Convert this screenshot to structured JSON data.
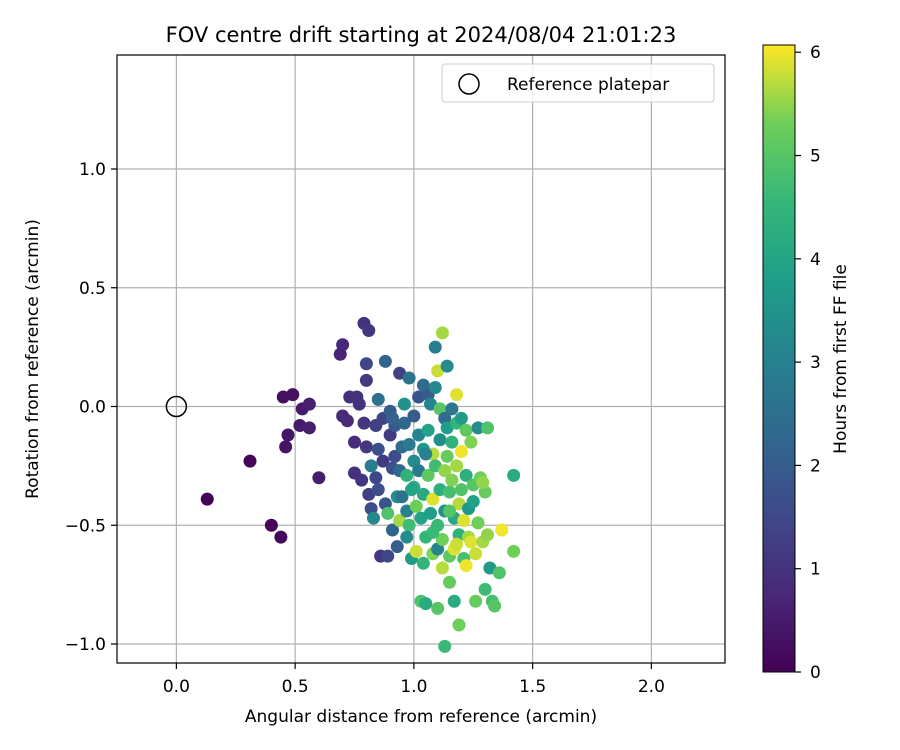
{
  "chart_data": {
    "type": "scatter",
    "title": "FOV centre drift starting at 2024/08/04 21:01:23",
    "xlabel": "Angular distance from reference (arcmin)",
    "ylabel": "Rotation from reference (arcmin)",
    "xlim": [
      -0.25,
      2.31
    ],
    "ylim": [
      -1.08,
      1.48
    ],
    "xticks": [
      0.0,
      0.5,
      1.0,
      1.5,
      2.0
    ],
    "xtick_labels": [
      "0.0",
      "0.5",
      "1.0",
      "1.5",
      "2.0"
    ],
    "yticks": [
      -1.0,
      -0.5,
      0.0,
      0.5,
      1.0
    ],
    "ytick_labels": [
      "−1.0",
      "−0.5",
      "0.0",
      "0.5",
      "1.0"
    ],
    "grid": true,
    "legend": {
      "placement": "top-right",
      "entries": [
        "Reference platepar"
      ]
    },
    "reference_point": {
      "x": 0.0,
      "y": 0.0
    },
    "colorbar": {
      "label": "Hours from first FF file",
      "range": [
        0,
        6.07
      ],
      "ticks": [
        0,
        1,
        2,
        3,
        4,
        5,
        6
      ],
      "colormap": "viridis"
    },
    "points": [
      [
        0.13,
        -0.39,
        0.05
      ],
      [
        0.31,
        -0.23,
        0.1
      ],
      [
        0.4,
        -0.5,
        0.1
      ],
      [
        0.44,
        -0.55,
        0.15
      ],
      [
        0.45,
        0.04,
        0.3
      ],
      [
        0.46,
        -0.17,
        0.35
      ],
      [
        0.47,
        -0.12,
        0.4
      ],
      [
        0.49,
        0.05,
        0.3
      ],
      [
        0.52,
        -0.08,
        0.5
      ],
      [
        0.53,
        -0.01,
        0.5
      ],
      [
        0.56,
        0.01,
        0.6
      ],
      [
        0.56,
        -0.09,
        0.6
      ],
      [
        0.6,
        -0.3,
        0.55
      ],
      [
        0.69,
        0.22,
        0.7
      ],
      [
        0.7,
        0.26,
        0.75
      ],
      [
        0.7,
        -0.04,
        0.8
      ],
      [
        0.72,
        -0.06,
        0.85
      ],
      [
        0.73,
        0.04,
        0.9
      ],
      [
        0.75,
        -0.15,
        0.9
      ],
      [
        0.75,
        -0.28,
        0.95
      ],
      [
        0.76,
        0.04,
        1.0
      ],
      [
        0.77,
        0.01,
        1.0
      ],
      [
        0.78,
        -0.31,
        1.05
      ],
      [
        0.79,
        0.35,
        1.0
      ],
      [
        0.79,
        -0.07,
        1.1
      ],
      [
        0.8,
        -0.17,
        1.1
      ],
      [
        0.8,
        0.11,
        1.2
      ],
      [
        0.8,
        0.18,
        1.5
      ],
      [
        0.81,
        0.32,
        1.1
      ],
      [
        0.81,
        -0.37,
        1.3
      ],
      [
        0.82,
        -0.25,
        2.9
      ],
      [
        0.82,
        -0.43,
        1.6
      ],
      [
        0.83,
        -0.47,
        3.2
      ],
      [
        0.84,
        -0.08,
        1.3
      ],
      [
        0.84,
        -0.3,
        1.5
      ],
      [
        0.85,
        0.03,
        2.5
      ],
      [
        0.85,
        -0.18,
        1.7
      ],
      [
        0.85,
        -0.35,
        1.6
      ],
      [
        0.86,
        -0.63,
        1.1
      ],
      [
        0.87,
        -0.05,
        1.4
      ],
      [
        0.87,
        -0.23,
        1.2
      ],
      [
        0.88,
        0.19,
        2.2
      ],
      [
        0.88,
        -0.41,
        1.8
      ],
      [
        0.89,
        -0.63,
        1.5
      ],
      [
        0.89,
        -0.45,
        4.9
      ],
      [
        0.9,
        -0.02,
        2.0
      ],
      [
        0.9,
        -0.12,
        1.2
      ],
      [
        0.91,
        -0.26,
        1.7
      ],
      [
        0.91,
        -0.52,
        2.2
      ],
      [
        0.92,
        -0.08,
        1.9
      ],
      [
        0.92,
        -0.21,
        1.6
      ],
      [
        0.93,
        -0.59,
        2.0
      ],
      [
        0.93,
        -0.38,
        3.4
      ],
      [
        0.94,
        0.14,
        1.4
      ],
      [
        0.94,
        -0.27,
        2.3
      ],
      [
        0.94,
        -0.48,
        5.6
      ],
      [
        0.95,
        -0.17,
        2.4
      ],
      [
        0.95,
        -0.38,
        2.6
      ],
      [
        0.96,
        0.01,
        3.5
      ],
      [
        0.96,
        -0.07,
        2.2
      ],
      [
        0.97,
        -0.29,
        4.4
      ],
      [
        0.97,
        -0.44,
        3.0
      ],
      [
        0.98,
        0.12,
        2.6
      ],
      [
        0.98,
        -0.16,
        2.8
      ],
      [
        0.98,
        -0.5,
        4.7
      ],
      [
        0.99,
        -0.64,
        3.7
      ],
      [
        1.0,
        -0.04,
        2.0
      ],
      [
        1.0,
        -0.23,
        3.3
      ],
      [
        1.0,
        -0.34,
        4.2
      ],
      [
        1.01,
        -0.42,
        5.3
      ],
      [
        1.01,
        -0.61,
        5.8
      ],
      [
        1.02,
        0.04,
        1.8
      ],
      [
        1.02,
        -0.12,
        3.1
      ],
      [
        1.02,
        -0.27,
        2.8
      ],
      [
        1.03,
        -0.47,
        3.9
      ],
      [
        1.03,
        -0.82,
        4.9
      ],
      [
        1.04,
        0.09,
        2.4
      ],
      [
        1.04,
        -0.18,
        3.6
      ],
      [
        1.04,
        -0.37,
        4.1
      ],
      [
        1.05,
        -0.55,
        4.5
      ],
      [
        1.05,
        -0.83,
        4.2
      ],
      [
        1.06,
        0.05,
        2.0
      ],
      [
        1.06,
        -0.1,
        3.9
      ],
      [
        1.06,
        -0.29,
        5.1
      ],
      [
        1.07,
        -0.45,
        3.8
      ],
      [
        1.07,
        0.01,
        3.1
      ],
      [
        1.08,
        -0.2,
        5.7
      ],
      [
        1.08,
        -0.39,
        5.9
      ],
      [
        1.08,
        -0.62,
        5.4
      ],
      [
        1.09,
        0.08,
        3.2
      ],
      [
        1.09,
        0.25,
        2.9
      ],
      [
        1.09,
        -0.25,
        4.7
      ],
      [
        1.1,
        -0.5,
        4.6
      ],
      [
        1.1,
        0.15,
        5.8
      ],
      [
        1.1,
        -0.6,
        3.1
      ],
      [
        1.1,
        -0.85,
        5.0
      ],
      [
        1.11,
        -0.01,
        5.0
      ],
      [
        1.11,
        -0.14,
        3.4
      ],
      [
        1.11,
        -0.35,
        4.3
      ],
      [
        1.12,
        0.31,
        5.6
      ],
      [
        1.12,
        -0.56,
        5.3
      ],
      [
        1.12,
        -0.68,
        5.7
      ],
      [
        1.13,
        -0.05,
        2.4
      ],
      [
        1.13,
        -0.27,
        5.5
      ],
      [
        1.13,
        -0.44,
        3.5
      ],
      [
        1.13,
        -1.01,
        4.6
      ],
      [
        1.14,
        0.17,
        3.3
      ],
      [
        1.14,
        -0.09,
        3.8
      ],
      [
        1.14,
        -0.21,
        5.2
      ],
      [
        1.15,
        -0.36,
        4.8
      ],
      [
        1.15,
        -0.63,
        5.1
      ],
      [
        1.15,
        -0.74,
        5.2
      ],
      [
        1.16,
        -0.01,
        2.7
      ],
      [
        1.16,
        -0.15,
        4.4
      ],
      [
        1.16,
        -0.31,
        5.4
      ],
      [
        1.17,
        -0.47,
        4.1
      ],
      [
        1.17,
        -0.6,
        5.9
      ],
      [
        1.17,
        -0.82,
        4.2
      ],
      [
        1.18,
        0.05,
        5.9
      ],
      [
        1.18,
        -0.07,
        4.5
      ],
      [
        1.18,
        -0.25,
        5.6
      ],
      [
        1.19,
        -0.41,
        5.7
      ],
      [
        1.19,
        -0.54,
        4.4
      ],
      [
        1.19,
        -0.92,
        5.3
      ],
      [
        1.2,
        -0.05,
        3.7
      ],
      [
        1.2,
        -0.19,
        6.0
      ],
      [
        1.2,
        -0.35,
        4.9
      ],
      [
        1.21,
        -0.48,
        5.9
      ],
      [
        1.21,
        -0.64,
        4.8
      ],
      [
        1.22,
        -0.1,
        5.1
      ],
      [
        1.22,
        -0.29,
        4.3
      ],
      [
        1.22,
        -0.67,
        6.0
      ],
      [
        1.23,
        -0.55,
        5.6
      ],
      [
        1.23,
        -0.43,
        3.6
      ],
      [
        1.24,
        -0.15,
        5.4
      ],
      [
        1.24,
        -0.57,
        5.9
      ],
      [
        1.25,
        -0.33,
        5.0
      ],
      [
        1.25,
        -0.4,
        3.9
      ],
      [
        1.26,
        -0.62,
        5.8
      ],
      [
        1.26,
        -0.82,
        5.2
      ],
      [
        1.27,
        -0.09,
        3.3
      ],
      [
        1.27,
        -0.49,
        5.3
      ],
      [
        1.28,
        -0.3,
        5.3
      ],
      [
        1.29,
        -0.57,
        5.6
      ],
      [
        1.3,
        -0.36,
        5.2
      ],
      [
        1.3,
        -0.77,
        4.7
      ],
      [
        1.31,
        -0.54,
        5.5
      ],
      [
        1.31,
        -0.09,
        4.9
      ],
      [
        1.32,
        -0.68,
        3.7
      ],
      [
        1.33,
        -0.82,
        4.8
      ],
      [
        1.34,
        -0.84,
        5.0
      ],
      [
        1.36,
        -0.7,
        4.9
      ],
      [
        1.37,
        -0.52,
        6.0
      ],
      [
        1.42,
        -0.61,
        5.3
      ],
      [
        1.42,
        -0.29,
        4.2
      ],
      [
        1.29,
        -0.32,
        5.5
      ],
      [
        1.05,
        -0.2,
        3.0
      ],
      [
        0.97,
        -0.55,
        3.3
      ],
      [
        1.08,
        -0.53,
        4.6
      ],
      [
        0.99,
        -0.35,
        4.0
      ],
      [
        1.15,
        -0.44,
        5.0
      ],
      [
        1.04,
        -0.66,
        4.5
      ],
      [
        1.18,
        -0.58,
        5.8
      ],
      [
        0.91,
        -0.05,
        2.1
      ]
    ]
  }
}
